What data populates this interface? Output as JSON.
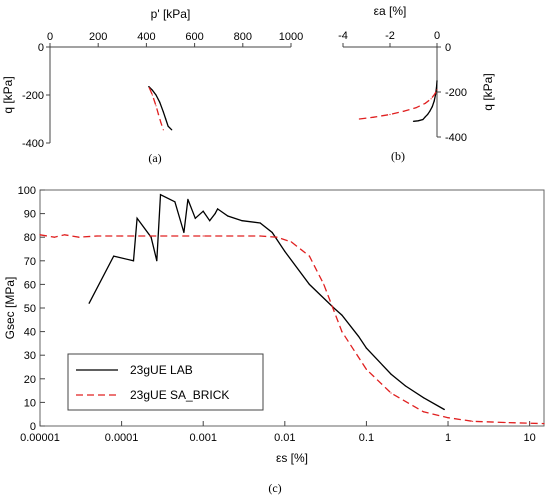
{
  "chart_data": [
    {
      "id": "a",
      "type": "line",
      "caption": "(a)",
      "xlabel": "p' [kPa]",
      "ylabel": "q [kPa]",
      "xlim": [
        0,
        1000
      ],
      "ylim": [
        -400,
        0
      ],
      "x_ticks": [
        "0",
        "200",
        "400",
        "600",
        "800",
        "1000"
      ],
      "y_ticks": [
        "0",
        "-200",
        "-400"
      ],
      "series": [
        {
          "color": "#000000",
          "dash": "solid",
          "x": [
            410,
            425,
            440,
            455,
            470,
            480,
            490,
            505
          ],
          "y": [
            -165,
            -180,
            -200,
            -230,
            -270,
            -300,
            -330,
            -345
          ]
        },
        {
          "color": "#e02020",
          "dash": "dashed",
          "x": [
            412,
            425,
            440,
            450,
            460,
            470
          ],
          "y": [
            -170,
            -200,
            -245,
            -280,
            -315,
            -345
          ]
        }
      ]
    },
    {
      "id": "b",
      "type": "line",
      "caption": "(b)",
      "xlabel": "εa [%]",
      "ylabel": "q [kPa]",
      "xlim": [
        -4,
        0
      ],
      "ylim": [
        -400,
        0
      ],
      "x_ticks": [
        "-4",
        "-2",
        "0"
      ],
      "y_ticks": [
        "0",
        "-200",
        "-400"
      ],
      "series": [
        {
          "color": "#000000",
          "dash": "solid",
          "x": [
            -1.0,
            -0.8,
            -0.6,
            -0.5,
            -0.4,
            -0.3,
            -0.2,
            -0.12,
            -0.06,
            -0.02,
            0
          ],
          "y": [
            -330,
            -328,
            -322,
            -310,
            -300,
            -285,
            -265,
            -240,
            -210,
            -180,
            -150
          ]
        },
        {
          "color": "#e02020",
          "dash": "dashed",
          "x": [
            -3.3,
            -2.7,
            -2.0,
            -1.4,
            -0.9,
            -0.5,
            -0.25,
            -0.1,
            0
          ],
          "y": [
            -320,
            -312,
            -300,
            -285,
            -270,
            -250,
            -230,
            -210,
            -190
          ]
        }
      ]
    },
    {
      "id": "c",
      "type": "line",
      "caption": "(c)",
      "xlabel": "εs [%]",
      "ylabel": "Gsec [MPa]",
      "xscale": "log",
      "xlim": [
        1e-05,
        15
      ],
      "ylim": [
        0,
        100
      ],
      "x_ticks": [
        "0.00001",
        "0.0001",
        "0.001",
        "0.01",
        "0.1",
        "1",
        "10"
      ],
      "y_ticks": [
        "0",
        "10",
        "20",
        "30",
        "40",
        "50",
        "60",
        "70",
        "80",
        "90",
        "100"
      ],
      "legend": {
        "position": "bottom-left",
        "entries": [
          "23gUE  LAB",
          "23gUE SA_BRICK"
        ]
      },
      "series": [
        {
          "name": "23gUE  LAB",
          "color": "#000000",
          "dash": "solid",
          "x": [
            4e-05,
            8e-05,
            0.00014,
            0.000155,
            0.00023,
            0.00027,
            0.0003,
            0.00045,
            0.00058,
            0.00065,
            0.0008,
            0.001,
            0.0012,
            0.0014,
            0.0015,
            0.002,
            0.003,
            0.005,
            0.007,
            0.01,
            0.02,
            0.04,
            0.05,
            0.08,
            0.1,
            0.2,
            0.3,
            0.5,
            0.9
          ],
          "y": [
            52,
            72,
            70,
            88,
            80,
            70,
            98,
            95,
            82,
            96,
            88,
            91,
            87,
            90,
            92,
            89,
            87,
            86,
            82,
            74,
            60,
            50,
            47,
            38,
            33,
            22,
            17,
            12,
            7
          ]
        },
        {
          "name": "23gUE SA_BRICK",
          "color": "#e02020",
          "dash": "dashed",
          "x": [
            1e-05,
            1.5e-05,
            2e-05,
            3e-05,
            5e-05,
            0.0001,
            0.001,
            0.005,
            0.008,
            0.012,
            0.02,
            0.03,
            0.05,
            0.1,
            0.2,
            0.5,
            1,
            2,
            5,
            10,
            15
          ],
          "y": [
            81,
            80,
            81,
            80,
            80.5,
            80.5,
            80.5,
            80.5,
            80,
            78,
            72,
            60,
            40,
            24,
            14,
            6,
            3.5,
            2,
            1.5,
            1.2,
            1
          ]
        }
      ]
    }
  ]
}
